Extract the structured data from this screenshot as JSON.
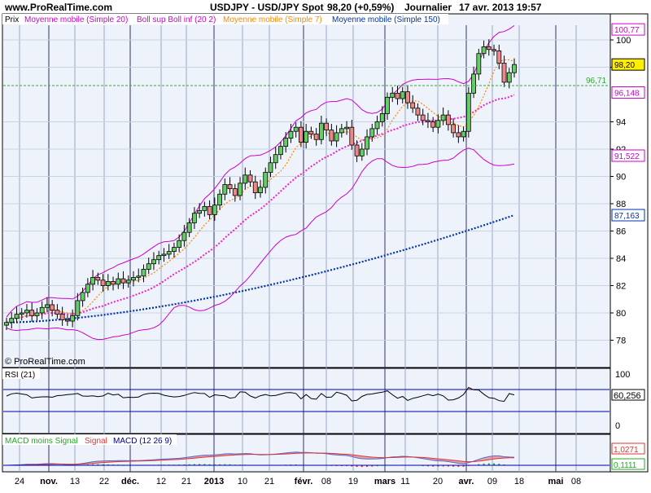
{
  "header": {
    "site": "www.ProRealTime.com",
    "instrument": "USDJPY - USD/JPY Spot",
    "last_price": "98,20 (+0,59%)",
    "period": "Journalier",
    "datetime": "17 avr. 2013 19:57"
  },
  "watermark": "© ProRealTime.com",
  "price_legend": {
    "label": "Prix",
    "items": [
      {
        "text": "Moyenne mobile (Simple 20)",
        "color": "#cc00cc"
      },
      {
        "text": "Boll sup Boll inf (20 2)",
        "color": "#cc00cc"
      },
      {
        "text": "Moyenne mobile (Simple 7)",
        "color": "#ff8800"
      },
      {
        "text": "Moyenne mobile (Simple 150)",
        "color": "#0033aa"
      }
    ]
  },
  "price_axis": {
    "min": 76,
    "max": 102,
    "ticks": [
      "78",
      "80",
      "82",
      "84",
      "86",
      "88",
      "90",
      "92",
      "94",
      "98",
      "100"
    ],
    "tags": [
      {
        "label": "100,77",
        "value": 100.77,
        "border": "#cc00cc",
        "bg": "#ffffff"
      },
      {
        "label": "98,20",
        "value": 98.2,
        "border": "#000000",
        "bg": "#ffee00"
      },
      {
        "label": "96,148",
        "value": 96.148,
        "border": "#cc00cc",
        "bg": "#ffffff"
      },
      {
        "label": "91,522",
        "value": 91.522,
        "border": "#cc00cc",
        "bg": "#ffffff"
      },
      {
        "label": "87,163",
        "value": 87.163,
        "border": "#0033aa",
        "bg": "#ffffff"
      }
    ],
    "hline": {
      "label": "96,71",
      "value": 96.71,
      "color": "#33aa33"
    }
  },
  "rsi": {
    "label": "RSI (21)",
    "ticks": [
      "100",
      "0"
    ],
    "value_tag": "60,256",
    "upper": 70,
    "lower": 30,
    "last": 60.256
  },
  "macd": {
    "label_parts": [
      {
        "text": "MACD moins Signal",
        "color": "#22aa22"
      },
      {
        "text": "Signal",
        "color": "#dd3333"
      },
      {
        "text": "MACD (12 26 9)",
        "color": "#000088"
      }
    ],
    "tags": [
      "1,0271",
      "0,1111"
    ],
    "last_macd": 1.0271,
    "last_hist": 0.1111
  },
  "x_axis": {
    "labels": [
      {
        "text": "24",
        "bold": false
      },
      {
        "text": "nov.",
        "bold": true
      },
      {
        "text": "13",
        "bold": false
      },
      {
        "text": "22",
        "bold": false
      },
      {
        "text": "déc.",
        "bold": true
      },
      {
        "text": "12",
        "bold": false
      },
      {
        "text": "21",
        "bold": false
      },
      {
        "text": "2013",
        "bold": true
      },
      {
        "text": "10",
        "bold": false
      },
      {
        "text": "21",
        "bold": false
      },
      {
        "text": "févr.",
        "bold": true
      },
      {
        "text": "08",
        "bold": false
      },
      {
        "text": "19",
        "bold": false
      },
      {
        "text": "mars",
        "bold": true
      },
      {
        "text": "11",
        "bold": false
      },
      {
        "text": "20",
        "bold": false
      },
      {
        "text": "avr.",
        "bold": true
      },
      {
        "text": "09",
        "bold": false
      },
      {
        "text": "18",
        "bold": false
      },
      {
        "text": "mai",
        "bold": true
      },
      {
        "text": "08",
        "bold": false
      }
    ]
  },
  "chart_data": {
    "type": "candlestick",
    "title": "USDJPY - USD/JPY Spot",
    "ylim": [
      76,
      102
    ],
    "series_note": "approximate daily closes read from chart, Oct 2012 - 17 Apr 2013",
    "closes": [
      79.3,
      79.6,
      79.9,
      80.0,
      80.2,
      79.8,
      80.0,
      80.4,
      80.6,
      80.2,
      79.9,
      79.5,
      79.4,
      79.8,
      80.9,
      81.5,
      82.1,
      82.6,
      82.4,
      82.0,
      82.3,
      82.1,
      82.5,
      82.2,
      82.4,
      82.6,
      82.7,
      83.2,
      83.6,
      83.9,
      84.2,
      84.3,
      84.5,
      84.8,
      85.3,
      85.9,
      86.6,
      87.3,
      87.5,
      87.8,
      87.2,
      87.9,
      88.7,
      89.4,
      89.1,
      88.6,
      89.5,
      90.1,
      89.6,
      88.8,
      89.2,
      90.3,
      91.0,
      91.6,
      92.2,
      92.8,
      93.3,
      93.6,
      92.5,
      93.3,
      93.1,
      92.7,
      93.9,
      93.4,
      92.6,
      93.2,
      93.5,
      93.6,
      92.3,
      91.5,
      92.0,
      92.9,
      93.5,
      94.0,
      94.6,
      95.8,
      96.1,
      95.7,
      96.2,
      95.4,
      95.0,
      94.5,
      94.1,
      94.0,
      93.6,
      94.1,
      94.5,
      93.8,
      93.2,
      92.9,
      93.3,
      96.1,
      97.5,
      99.0,
      99.5,
      99.3,
      99.2,
      98.3,
      96.9,
      97.6,
      98.2
    ],
    "sma20_last": 96.148,
    "boll_upper_last": 100.77,
    "boll_lower_last": 91.522,
    "sma150_last": 87.163,
    "rsi_last": 60.256,
    "macd_last": 1.0271,
    "macd_hist_last": 0.1111
  }
}
